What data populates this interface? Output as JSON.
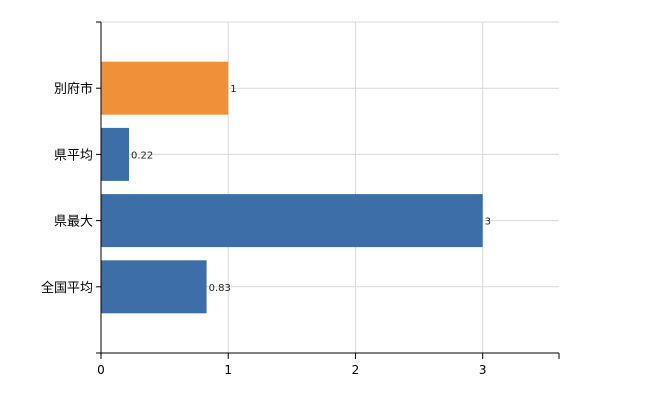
{
  "chart_data": {
    "type": "bar",
    "orientation": "horizontal",
    "categories": [
      "別府市",
      "県平均",
      "県最大",
      "全国平均"
    ],
    "values": [
      1,
      0.22,
      3,
      0.83
    ],
    "data_labels": [
      "1",
      "0.22",
      "3",
      "0.83"
    ],
    "bar_colors": [
      "#f0913a",
      "#3d6ea8",
      "#3d6ea8",
      "#3d6ea8"
    ],
    "xlim": [
      0,
      3.6
    ],
    "xticks": [
      0,
      1,
      2,
      3
    ],
    "grid": true,
    "legend": "none"
  }
}
